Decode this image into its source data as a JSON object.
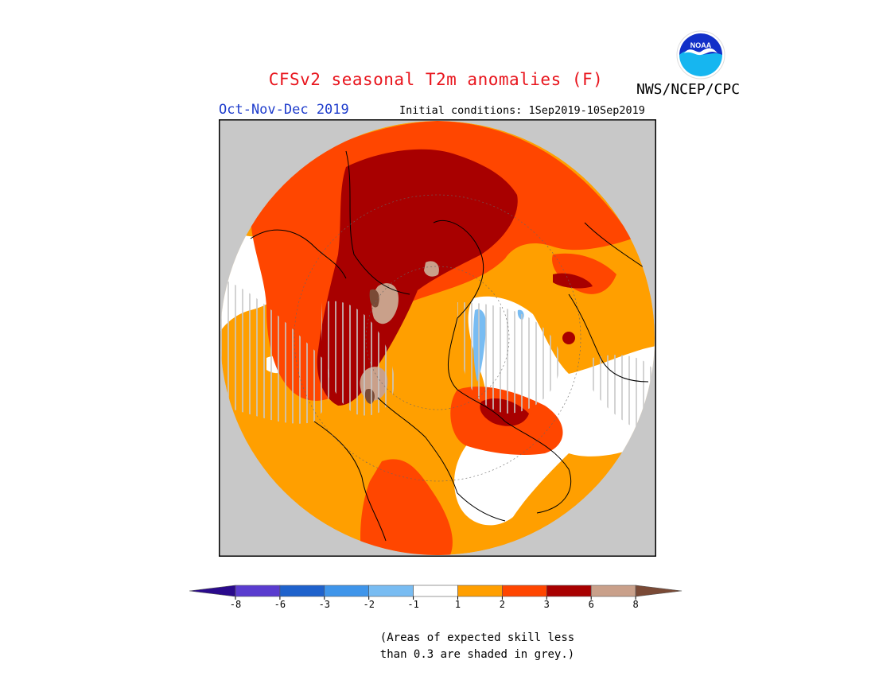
{
  "header": {
    "title": "CFSv2 seasonal T2m anomalies (F)",
    "agency": "NWS/NCEP/CPC",
    "season": "Oct-Nov-Dec 2019",
    "initial_conditions": "Initial conditions: 1Sep2019-10Sep2019",
    "logo_text": "NOAA"
  },
  "legend": {
    "tick_labels": [
      "-8",
      "-6",
      "-3",
      "-2",
      "-1",
      "1",
      "2",
      "3",
      "6",
      "8"
    ],
    "bins": [
      {
        "range": "< -8",
        "color": "#2a0a8c"
      },
      {
        "range": "-8 to -6",
        "color": "#5a3ccf"
      },
      {
        "range": "-6 to -3",
        "color": "#1f62cc"
      },
      {
        "range": "-3 to -2",
        "color": "#3f95ea"
      },
      {
        "range": "-2 to -1",
        "color": "#78bcf2"
      },
      {
        "range": "-1 to 1",
        "color": "#ffffff"
      },
      {
        "range": "1 to 2",
        "color": "#ff9f00"
      },
      {
        "range": "2 to 3",
        "color": "#ff4600"
      },
      {
        "range": "3 to 6",
        "color": "#a80000"
      },
      {
        "range": "6 to 8",
        "color": "#c9a08a"
      },
      {
        "range": "> 8",
        "color": "#7a4a36"
      }
    ],
    "grey_mask_color": "#c8c8c8"
  },
  "note": {
    "line1": "(Areas of expected skill less",
    "line2": "than 0.3 are shaded in grey.)"
  }
}
